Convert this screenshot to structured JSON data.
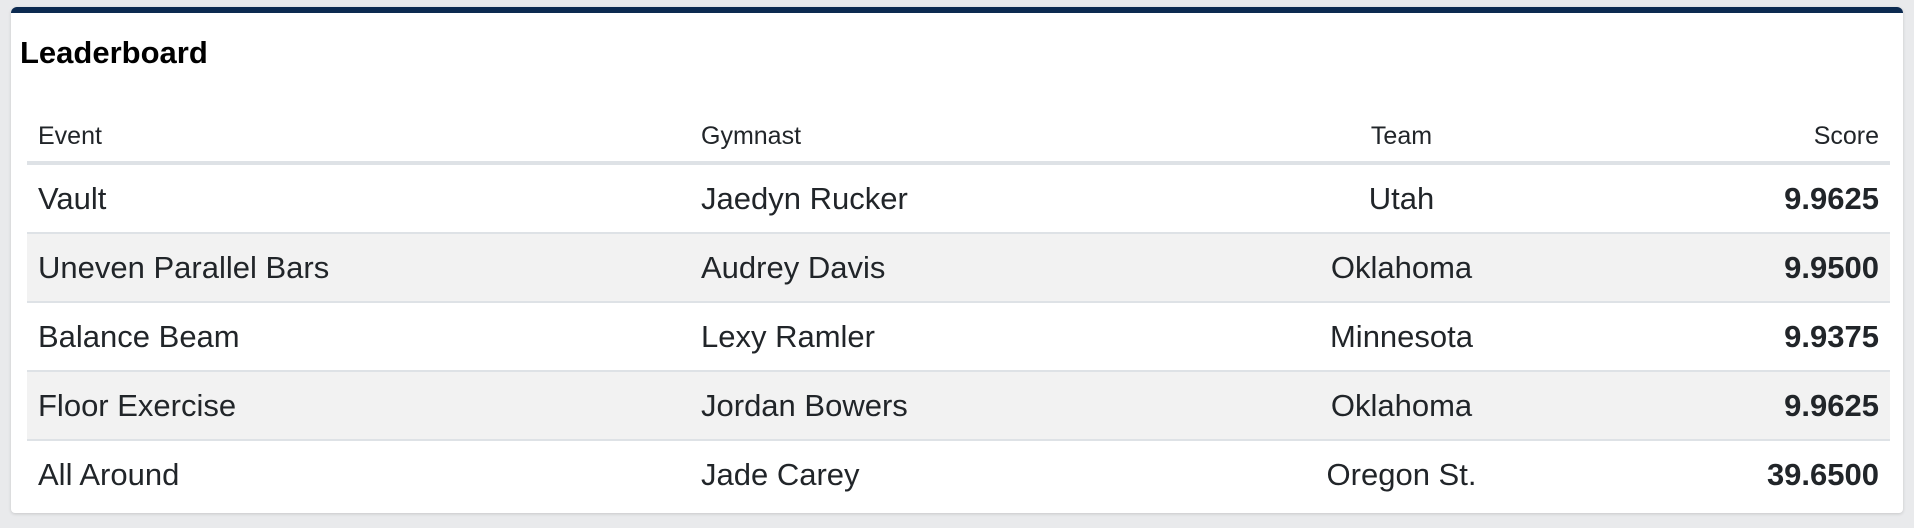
{
  "leaderboard": {
    "title": "Leaderboard",
    "columns": {
      "event": "Event",
      "gymnast": "Gymnast",
      "team": "Team",
      "score": "Score"
    },
    "rows": [
      {
        "event": "Vault",
        "gymnast": "Jaedyn Rucker",
        "team": "Utah",
        "score": "9.9625"
      },
      {
        "event": "Uneven Parallel Bars",
        "gymnast": "Audrey Davis",
        "team": "Oklahoma",
        "score": "9.9500"
      },
      {
        "event": "Balance Beam",
        "gymnast": "Lexy Ramler",
        "team": "Minnesota",
        "score": "9.9375"
      },
      {
        "event": "Floor Exercise",
        "gymnast": "Jordan Bowers",
        "team": "Oklahoma",
        "score": "9.9625"
      },
      {
        "event": "All Around",
        "gymnast": "Jade Carey",
        "team": "Oregon St.",
        "score": "39.6500"
      }
    ]
  },
  "colors": {
    "accent": "#0c2a50",
    "stripe": "#f2f2f2",
    "border": "#dee2e6"
  }
}
